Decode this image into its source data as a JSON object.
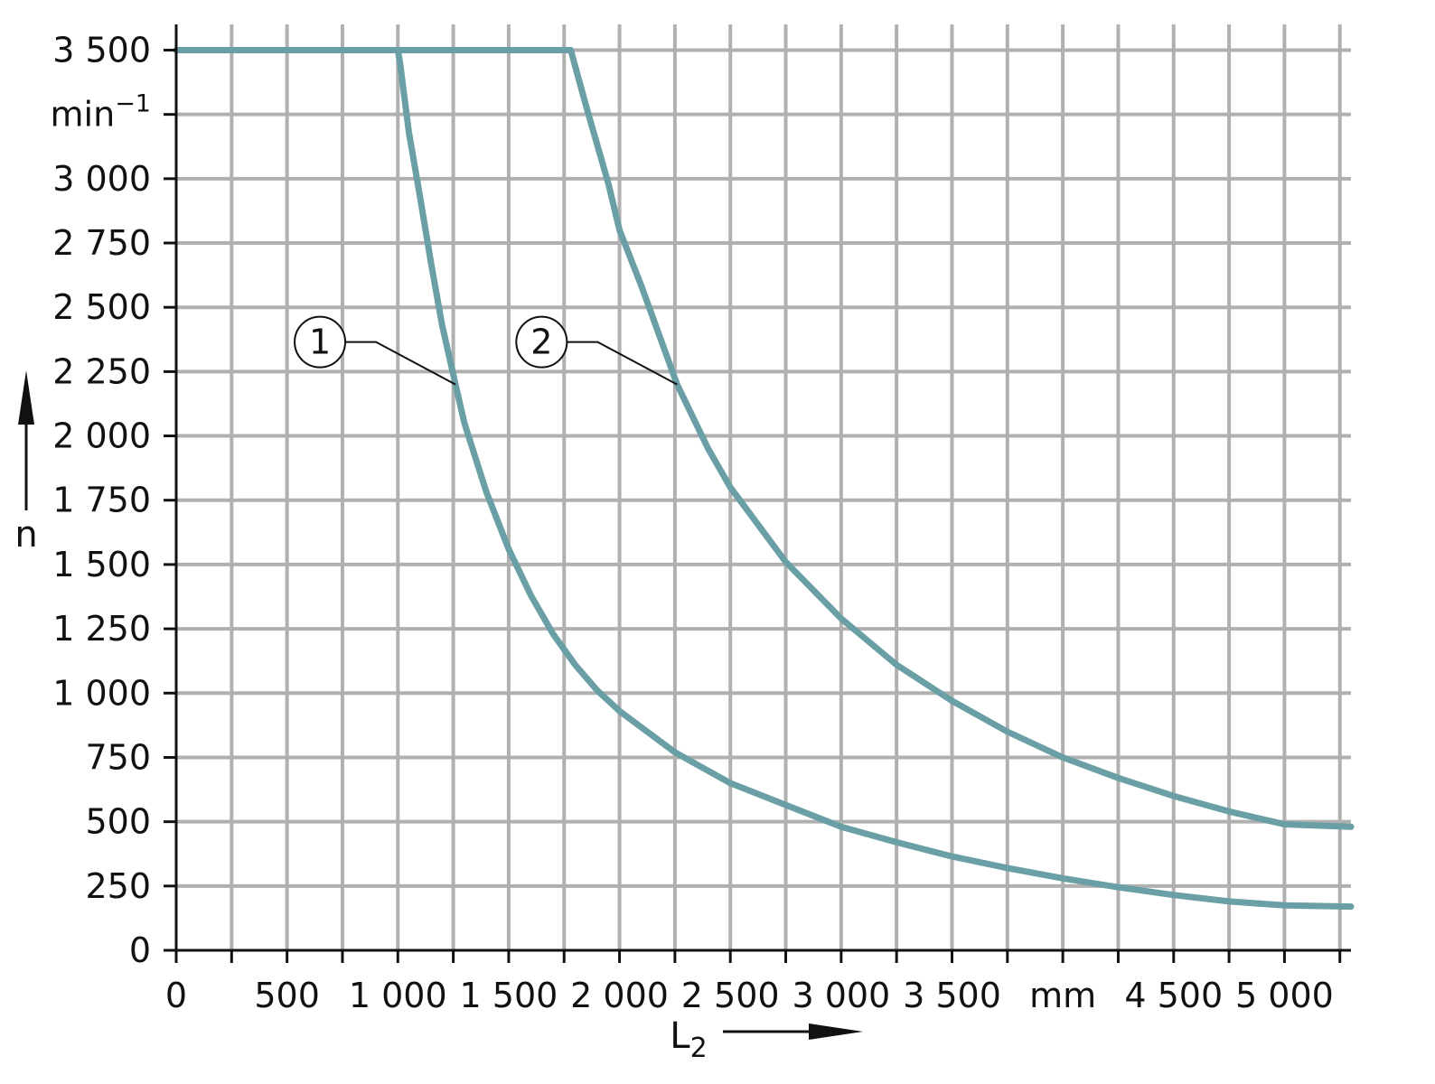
{
  "chart_data": {
    "type": "line",
    "title": "",
    "xlabel": "L",
    "xlabel_subscript": "2",
    "ylabel": "n",
    "x_unit": "mm",
    "y_unit": "min",
    "y_unit_exponent": "−1",
    "xlim": [
      0,
      5300
    ],
    "ylim": [
      0,
      3600
    ],
    "grid": true,
    "x_ticks": [
      {
        "value": 0,
        "label": "0"
      },
      {
        "value": 500,
        "label": "500"
      },
      {
        "value": 1000,
        "label": "1 000"
      },
      {
        "value": 1500,
        "label": "1 500"
      },
      {
        "value": 2000,
        "label": "2 000"
      },
      {
        "value": 2500,
        "label": "2 500"
      },
      {
        "value": 3000,
        "label": "3 000"
      },
      {
        "value": 3500,
        "label": "3 500"
      },
      {
        "value": 4000,
        "label": "mm"
      },
      {
        "value": 4500,
        "label": "4 500"
      },
      {
        "value": 5000,
        "label": "5 000"
      }
    ],
    "y_ticks": [
      {
        "value": 0,
        "label": "0"
      },
      {
        "value": 250,
        "label": "250"
      },
      {
        "value": 500,
        "label": "500"
      },
      {
        "value": 750,
        "label": "750"
      },
      {
        "value": 1000,
        "label": "1 000"
      },
      {
        "value": 1250,
        "label": "1 250"
      },
      {
        "value": 1500,
        "label": "1 500"
      },
      {
        "value": 1750,
        "label": "1 750"
      },
      {
        "value": 2000,
        "label": "2 000"
      },
      {
        "value": 2250,
        "label": "2 250"
      },
      {
        "value": 2500,
        "label": "2 500"
      },
      {
        "value": 2750,
        "label": "2 750"
      },
      {
        "value": 3000,
        "label": "3 000"
      },
      {
        "value": 3250,
        "label": "min"
      },
      {
        "value": 3500,
        "label": "3 500"
      }
    ],
    "series_color": "#6a9fa6",
    "series": [
      {
        "callout": "1",
        "callout_x": 1260,
        "callout_y": 2200,
        "points": [
          [
            0,
            3500
          ],
          [
            1000,
            3500
          ],
          [
            1010,
            3450
          ],
          [
            1050,
            3180
          ],
          [
            1100,
            2930
          ],
          [
            1150,
            2670
          ],
          [
            1200,
            2430
          ],
          [
            1260,
            2200
          ],
          [
            1300,
            2050
          ],
          [
            1400,
            1780
          ],
          [
            1500,
            1560
          ],
          [
            1600,
            1380
          ],
          [
            1700,
            1230
          ],
          [
            1800,
            1110
          ],
          [
            1900,
            1010
          ],
          [
            2000,
            930
          ],
          [
            2250,
            770
          ],
          [
            2500,
            650
          ],
          [
            2750,
            565
          ],
          [
            3000,
            480
          ],
          [
            3250,
            420
          ],
          [
            3500,
            365
          ],
          [
            3750,
            320
          ],
          [
            4000,
            280
          ],
          [
            4250,
            245
          ],
          [
            4500,
            215
          ],
          [
            4750,
            190
          ],
          [
            5000,
            175
          ],
          [
            5300,
            170
          ]
        ]
      },
      {
        "callout": "2",
        "callout_x": 2260,
        "callout_y": 2200,
        "points": [
          [
            0,
            3500
          ],
          [
            1780,
            3500
          ],
          [
            1850,
            3280
          ],
          [
            1950,
            2980
          ],
          [
            2000,
            2800
          ],
          [
            2100,
            2580
          ],
          [
            2260,
            2200
          ],
          [
            2400,
            1950
          ],
          [
            2500,
            1800
          ],
          [
            2750,
            1510
          ],
          [
            3000,
            1290
          ],
          [
            3250,
            1110
          ],
          [
            3500,
            970
          ],
          [
            3750,
            850
          ],
          [
            4000,
            750
          ],
          [
            4250,
            670
          ],
          [
            4500,
            600
          ],
          [
            4750,
            540
          ],
          [
            5000,
            490
          ],
          [
            5300,
            480
          ]
        ]
      }
    ]
  }
}
